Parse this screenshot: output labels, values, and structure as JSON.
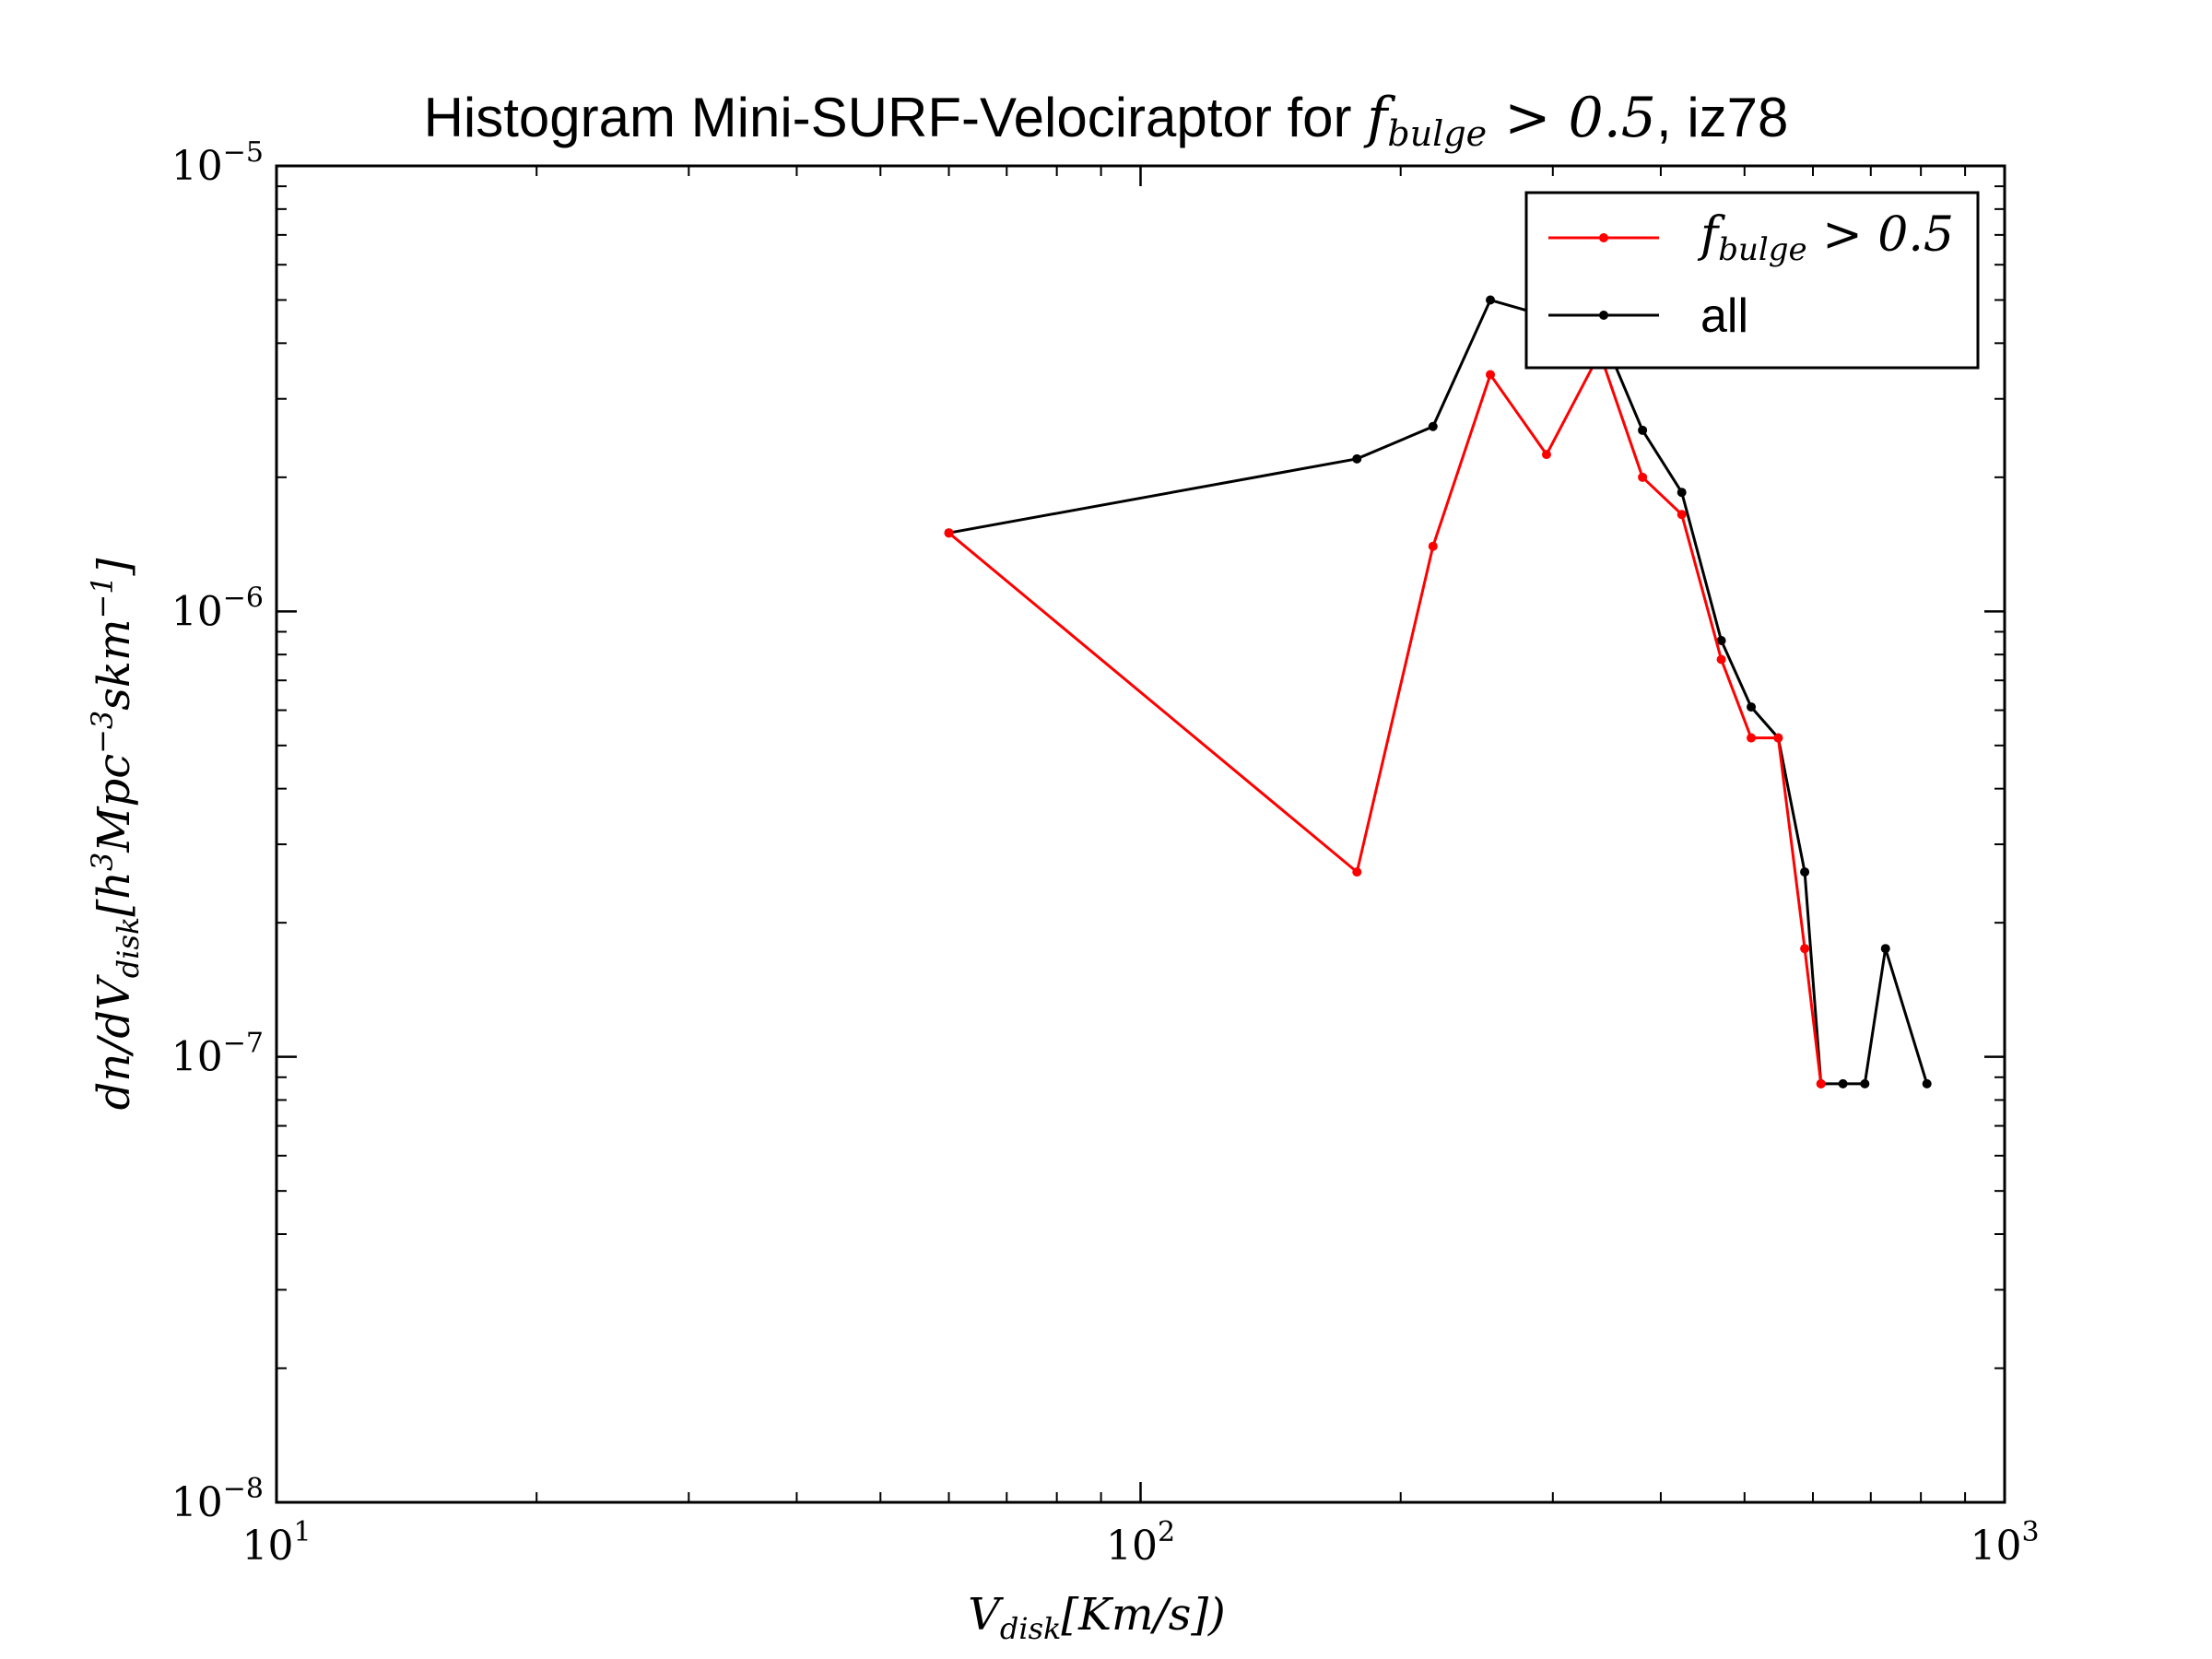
{
  "chart_data": {
    "type": "line",
    "title": {
      "prefix": "Histogram Mini-SURF-Velociraptor for ",
      "math_main": "f",
      "math_sub": "bulge",
      "math_rest": " > 0.5",
      "suffix": ", iz78"
    },
    "xlabel": {
      "main": "V",
      "sub": "disk",
      "rest": "[Km/s])"
    },
    "ylabel": {
      "p1": "dn/dV",
      "sub1": "disk",
      "p2": "[h",
      "sup1": "3",
      "p3": "Mpc",
      "sup2": "−3",
      "p4": "skm",
      "sup3": "−1",
      "p5": "]"
    },
    "xscale": "log",
    "yscale": "log",
    "xlim": [
      10,
      1000
    ],
    "ylim": [
      1e-08,
      1e-05
    ],
    "x_ticks": [
      {
        "value": 10,
        "base": "10",
        "exp": "1"
      },
      {
        "value": 100,
        "base": "10",
        "exp": "2"
      },
      {
        "value": 1000,
        "base": "10",
        "exp": "3"
      }
    ],
    "y_ticks": [
      {
        "value": 1e-08,
        "base": "10",
        "exp": "−8"
      },
      {
        "value": 1e-07,
        "base": "10",
        "exp": "−7"
      },
      {
        "value": 1e-06,
        "base": "10",
        "exp": "−6"
      },
      {
        "value": 1e-05,
        "base": "10",
        "exp": "−5"
      }
    ],
    "legend_position": "top-right",
    "series": [
      {
        "name_main": "f",
        "name_sub": "bulge",
        "name_rest": " > 0.5",
        "color": "#ff0000",
        "x": [
          60,
          178,
          218,
          254,
          295,
          340,
          381,
          423,
          470,
          509,
          547,
          587,
          613
        ],
        "y": [
          1.5e-06,
          2.6e-07,
          1.4e-06,
          3.4e-06,
          2.25e-06,
          3.8e-06,
          2e-06,
          1.65e-06,
          7.8e-07,
          5.2e-07,
          5.2e-07,
          1.75e-07,
          8.7e-08
        ]
      },
      {
        "name": "all",
        "color": "#000000",
        "x": [
          60,
          178,
          218,
          254,
          295,
          340,
          381,
          423,
          470,
          509,
          547,
          587,
          613,
          650,
          689,
          728,
          813
        ],
        "y": [
          1.5e-06,
          2.2e-06,
          2.6e-06,
          5e-06,
          4.6e-06,
          4.3e-06,
          2.55e-06,
          1.85e-06,
          8.6e-07,
          6.1e-07,
          5.2e-07,
          2.6e-07,
          8.7e-08,
          8.7e-08,
          8.7e-08,
          1.75e-07,
          8.7e-08
        ]
      }
    ]
  }
}
